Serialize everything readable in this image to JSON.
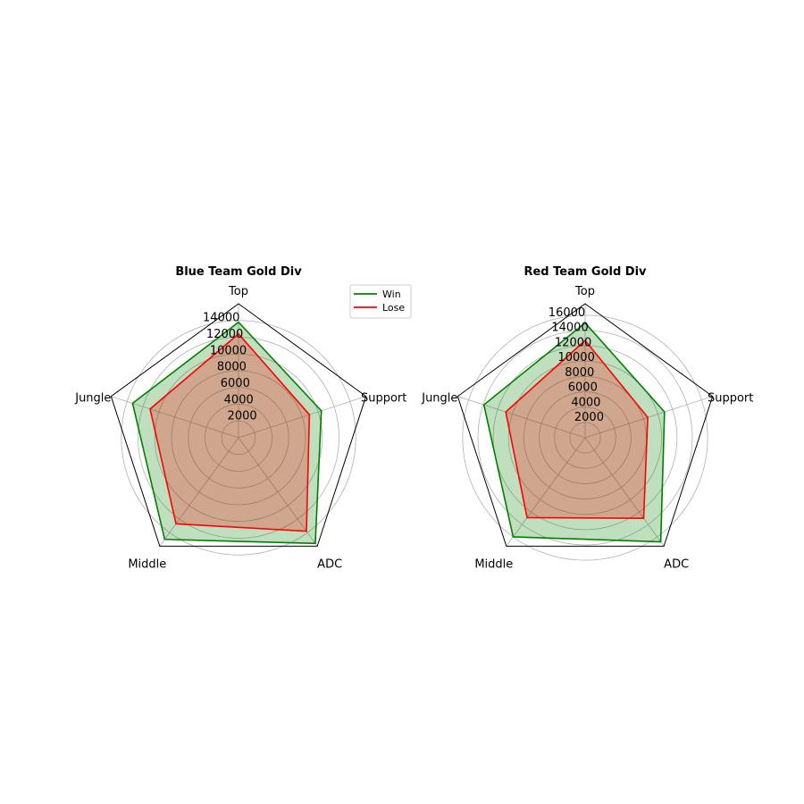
{
  "chart_data": [
    {
      "type": "radar",
      "title": "Blue Team Gold Div",
      "axes": [
        "Top",
        "Support",
        "ADC",
        "Middle",
        "Jungle"
      ],
      "rmax": 16000,
      "rticks": [
        2000,
        4000,
        6000,
        8000,
        10000,
        12000,
        14000
      ],
      "grid": true,
      "series": [
        {
          "name": "Win",
          "color": "#008000",
          "values": [
            13800,
            10400,
            15600,
            15000,
            13300
          ]
        },
        {
          "name": "Lose",
          "color": "#ff0000",
          "values": [
            12400,
            8900,
            13800,
            12700,
            11100
          ]
        }
      ]
    },
    {
      "type": "radar",
      "title": "Red Team Gold Div",
      "axes": [
        "Top",
        "Support",
        "ADC",
        "Middle",
        "Jungle"
      ],
      "rmax": 17500,
      "rticks": [
        2000,
        4000,
        6000,
        8000,
        10000,
        12000,
        14000,
        16000
      ],
      "grid": true,
      "series": [
        {
          "name": "Win",
          "color": "#008000",
          "values": [
            15000,
            10900,
            16800,
            16000,
            13900
          ]
        },
        {
          "name": "Lose",
          "color": "#ff0000",
          "values": [
            12700,
            8600,
            13000,
            12900,
            10900
          ]
        }
      ]
    }
  ],
  "legend": {
    "placement": "right-of-first-chart",
    "entries": [
      {
        "label": "Win",
        "color": "#008000"
      },
      {
        "label": "Lose",
        "color": "#ff0000"
      }
    ]
  },
  "fill_colors": {
    "win": "#008000",
    "lose": "#ff0000"
  }
}
